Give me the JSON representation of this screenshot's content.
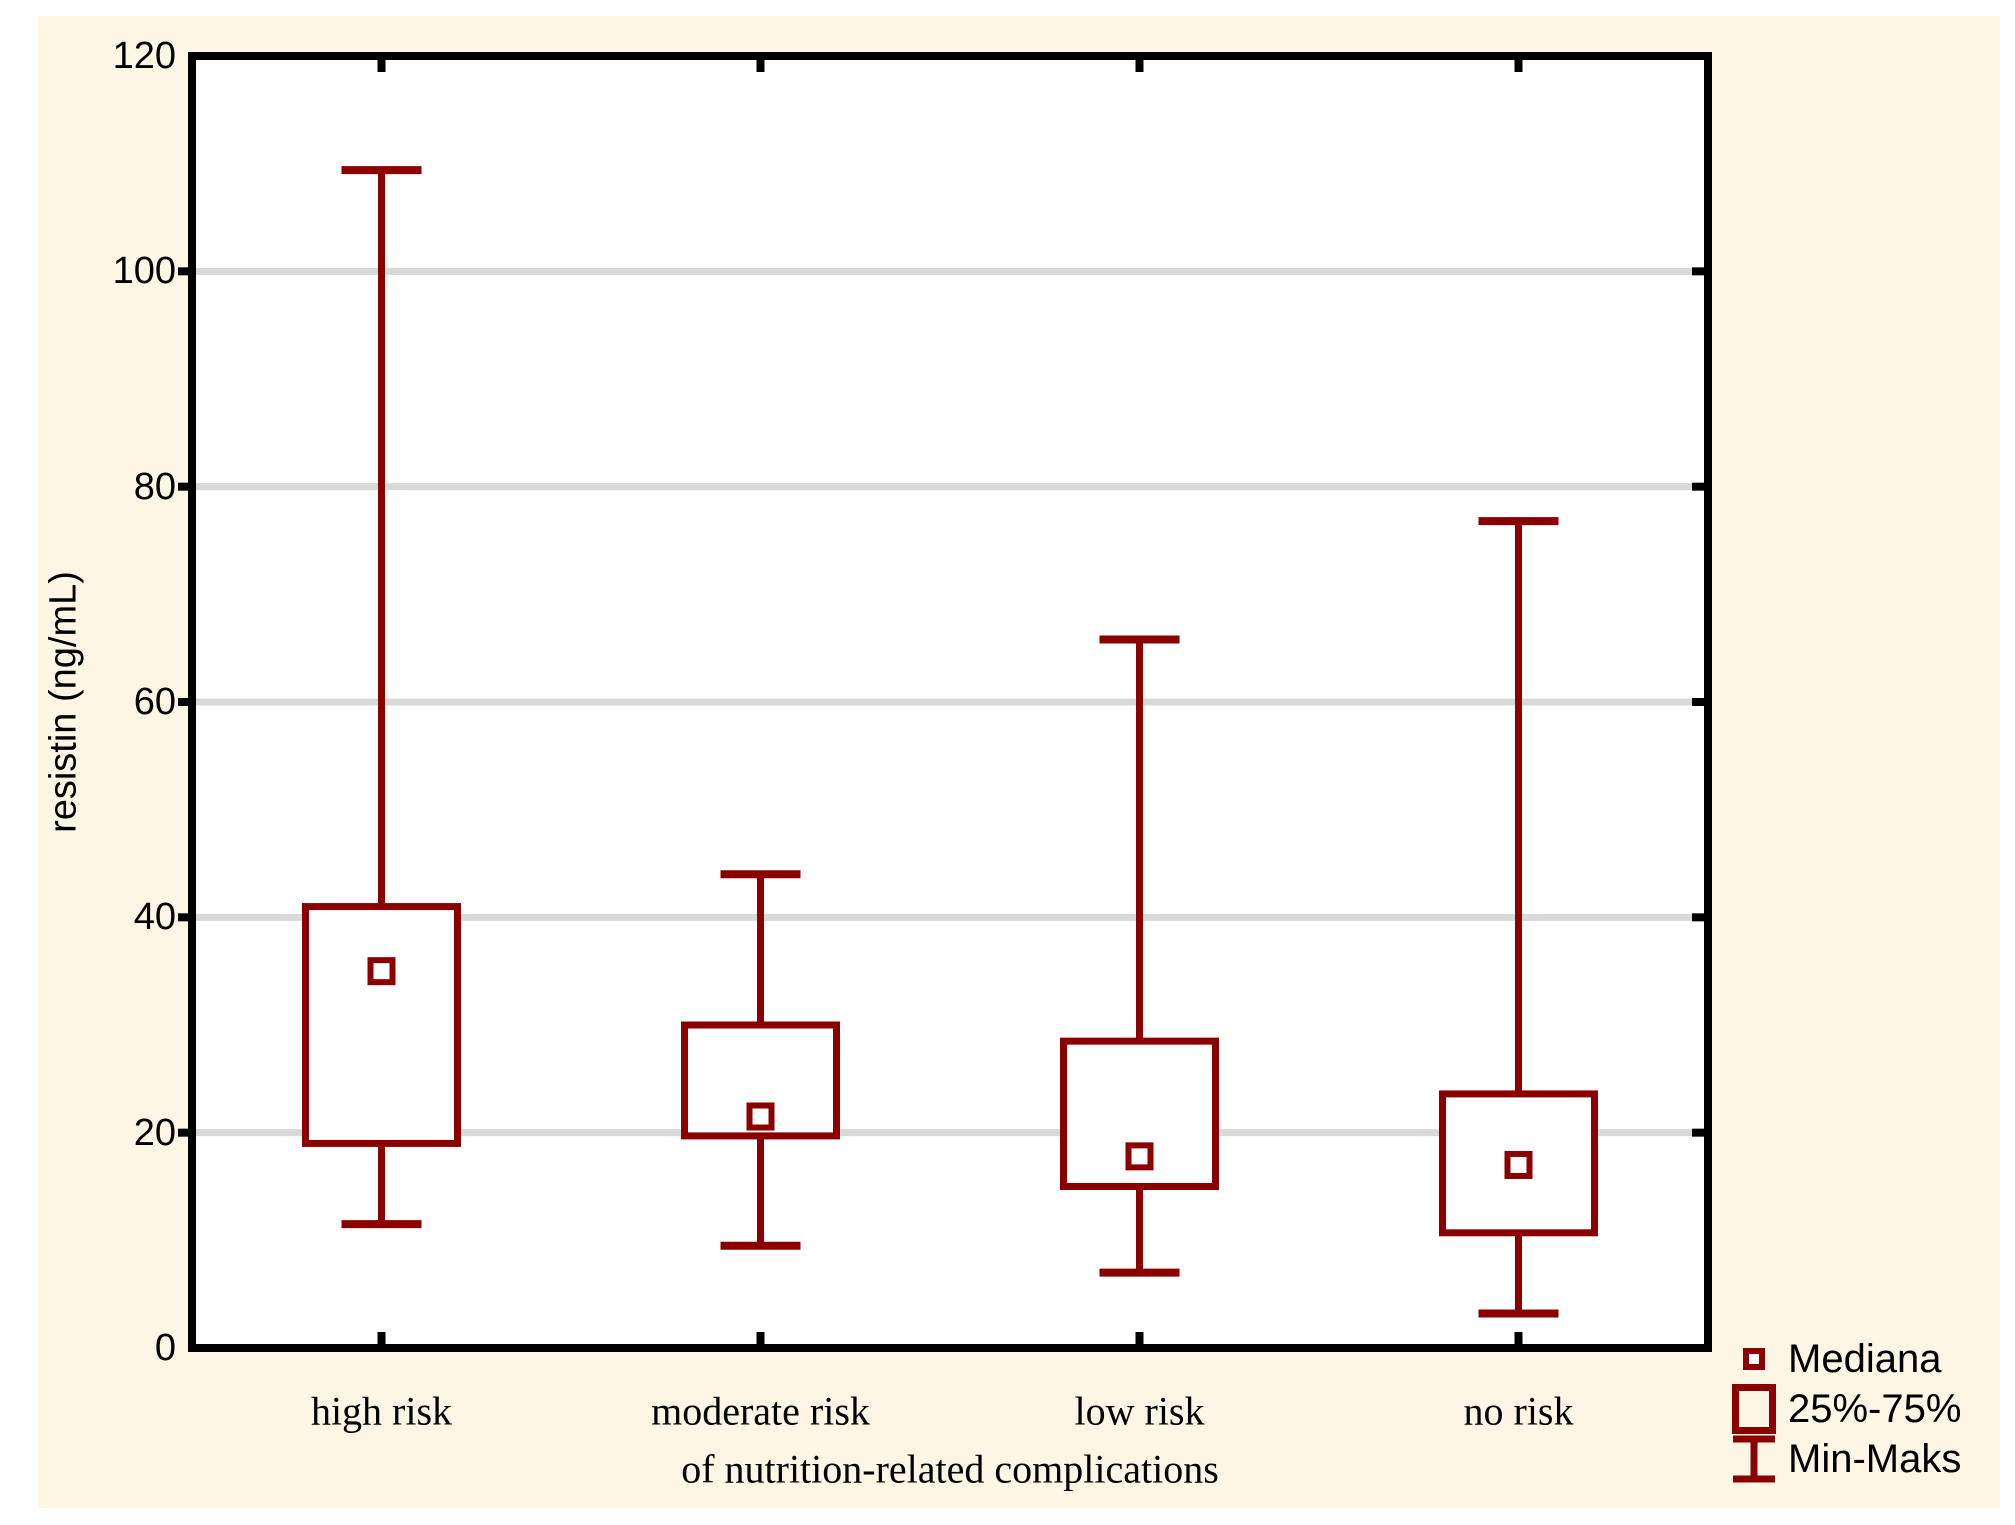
{
  "figure": {
    "background_color": "#fdf6e4",
    "plot_background": "#ffffff",
    "border_color": "#000000",
    "grid_color": "#d9d9d9",
    "accent_color": "#8b0000"
  },
  "chart_data": {
    "type": "box",
    "title": "",
    "ylabel": "resistin (ng/mL)",
    "xlabel": "of nutrition-related complications",
    "categories": [
      "high risk",
      "moderate risk",
      "low risk",
      "no risk"
    ],
    "ylim": [
      0,
      120
    ],
    "yticks": [
      0,
      20,
      40,
      60,
      80,
      100,
      120
    ],
    "grid": "horizontal-at-ticks",
    "series": [
      {
        "category": "high risk",
        "min": 11.5,
        "q1": 19.0,
        "median": 35.0,
        "q3": 41.0,
        "max": 109.4
      },
      {
        "category": "moderate risk",
        "min": 9.5,
        "q1": 19.7,
        "median": 21.5,
        "q3": 30.0,
        "max": 44.0
      },
      {
        "category": "low risk",
        "min": 7.0,
        "q1": 15.0,
        "median": 17.8,
        "q3": 28.5,
        "max": 65.8
      },
      {
        "category": "no risk",
        "min": 3.2,
        "q1": 10.7,
        "median": 17.0,
        "q3": 23.6,
        "max": 76.8
      }
    ],
    "legend": {
      "position": "bottom-right",
      "items": [
        {
          "label": "Mediana",
          "marker": "median-square"
        },
        {
          "label": "25%-75%",
          "marker": "box"
        },
        {
          "label": "Min-Maks",
          "marker": "min-max-whisker"
        }
      ]
    }
  }
}
